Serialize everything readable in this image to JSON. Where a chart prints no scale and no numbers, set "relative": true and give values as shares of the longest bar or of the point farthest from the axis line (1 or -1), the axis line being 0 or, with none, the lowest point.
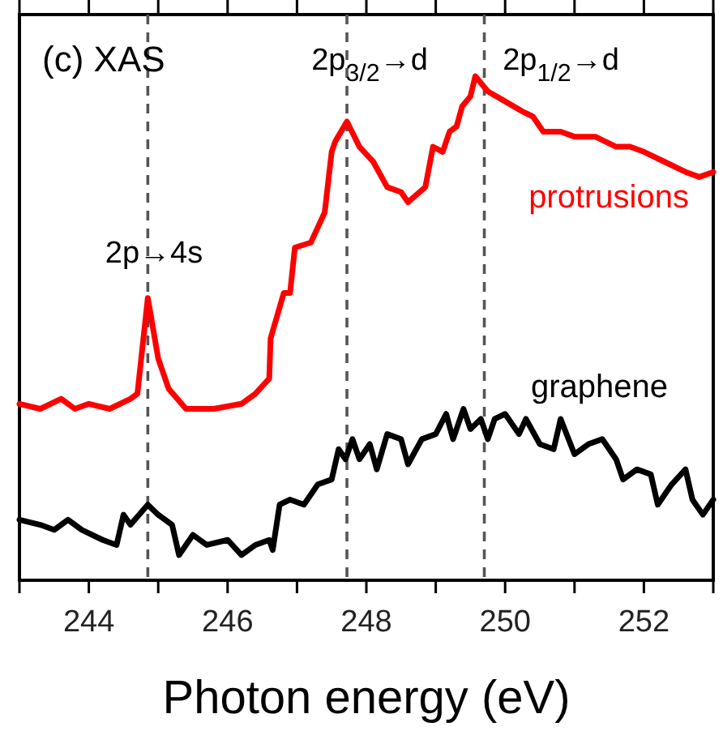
{
  "chart_data": {
    "type": "line",
    "relative": true,
    "xlabel": "Photon energy (eV)",
    "xlim": [
      243,
      253
    ],
    "xticks": [
      {
        "value": 243,
        "label": null
      },
      244,
      {
        "value": 245,
        "label": null
      },
      246,
      {
        "value": 247,
        "label": null
      },
      248,
      {
        "value": 249,
        "label": null
      },
      250,
      {
        "value": 251,
        "label": null
      },
      252,
      {
        "value": 253,
        "label": null
      }
    ],
    "grid": false,
    "series": [
      {
        "name": "protrusions",
        "color": "#ff0000",
        "x": [
          243.0,
          243.3,
          243.6,
          243.8,
          244.0,
          244.3,
          244.6,
          244.7,
          244.85,
          245.0,
          245.15,
          245.4,
          245.8,
          246.2,
          246.4,
          246.6,
          246.62,
          246.81,
          246.9,
          246.97,
          247.2,
          247.4,
          247.5,
          247.55,
          247.72,
          247.9,
          248.1,
          248.3,
          248.5,
          248.6,
          248.85,
          248.96,
          249.1,
          249.2,
          249.3,
          249.38,
          249.5,
          249.57,
          249.75,
          250.0,
          250.25,
          250.4,
          250.55,
          250.8,
          251.0,
          251.3,
          251.6,
          251.8,
          252.0,
          252.3,
          252.6,
          252.8,
          253.0
        ],
        "values": [
          0.35,
          0.34,
          0.36,
          0.34,
          0.35,
          0.34,
          0.36,
          0.37,
          0.56,
          0.44,
          0.38,
          0.34,
          0.34,
          0.35,
          0.37,
          0.4,
          0.48,
          0.57,
          0.57,
          0.66,
          0.67,
          0.73,
          0.85,
          0.87,
          0.91,
          0.86,
          0.83,
          0.78,
          0.77,
          0.75,
          0.78,
          0.86,
          0.85,
          0.89,
          0.9,
          0.94,
          0.96,
          1.0,
          0.97,
          0.95,
          0.93,
          0.92,
          0.89,
          0.89,
          0.88,
          0.88,
          0.86,
          0.86,
          0.85,
          0.83,
          0.81,
          0.8,
          0.81
        ]
      },
      {
        "name": "graphene",
        "color": "#000000",
        "x": [
          243.0,
          243.3,
          243.5,
          243.7,
          243.9,
          244.2,
          244.4,
          244.5,
          244.6,
          244.85,
          245.0,
          245.2,
          245.3,
          245.5,
          245.7,
          246.0,
          246.2,
          246.4,
          246.6,
          246.65,
          246.75,
          246.9,
          247.1,
          247.3,
          247.5,
          247.6,
          247.7,
          247.8,
          247.9,
          248.05,
          248.15,
          248.3,
          248.5,
          248.6,
          248.8,
          249.0,
          249.15,
          249.25,
          249.4,
          249.5,
          249.65,
          249.75,
          249.85,
          250.0,
          250.2,
          250.3,
          250.5,
          250.7,
          250.8,
          251.0,
          251.2,
          251.4,
          251.6,
          251.7,
          251.9,
          252.1,
          252.2,
          252.4,
          252.6,
          252.7,
          252.85,
          253.0
        ],
        "values": [
          0.12,
          0.11,
          0.1,
          0.12,
          0.1,
          0.08,
          0.07,
          0.13,
          0.11,
          0.15,
          0.13,
          0.11,
          0.05,
          0.09,
          0.07,
          0.08,
          0.05,
          0.07,
          0.08,
          0.06,
          0.15,
          0.16,
          0.15,
          0.19,
          0.2,
          0.26,
          0.24,
          0.28,
          0.24,
          0.27,
          0.22,
          0.29,
          0.28,
          0.23,
          0.28,
          0.29,
          0.33,
          0.28,
          0.34,
          0.3,
          0.32,
          0.28,
          0.32,
          0.33,
          0.29,
          0.32,
          0.27,
          0.26,
          0.32,
          0.25,
          0.27,
          0.28,
          0.24,
          0.2,
          0.22,
          0.21,
          0.15,
          0.19,
          0.22,
          0.16,
          0.13,
          0.16
        ]
      }
    ],
    "ref_lines": [
      {
        "axis": "x",
        "value": 244.85,
        "color": "#555555",
        "line_style": "dashed"
      },
      {
        "axis": "x",
        "value": 247.72,
        "color": "#555555",
        "line_style": "dashed"
      },
      {
        "axis": "x",
        "value": 249.7,
        "color": "#555555",
        "line_style": "dashed"
      }
    ],
    "annotations": [
      "(c) XAS",
      "2p→4s",
      "2p$_{3/2}$→d",
      "2p$_{1/2}$→d"
    ]
  }
}
